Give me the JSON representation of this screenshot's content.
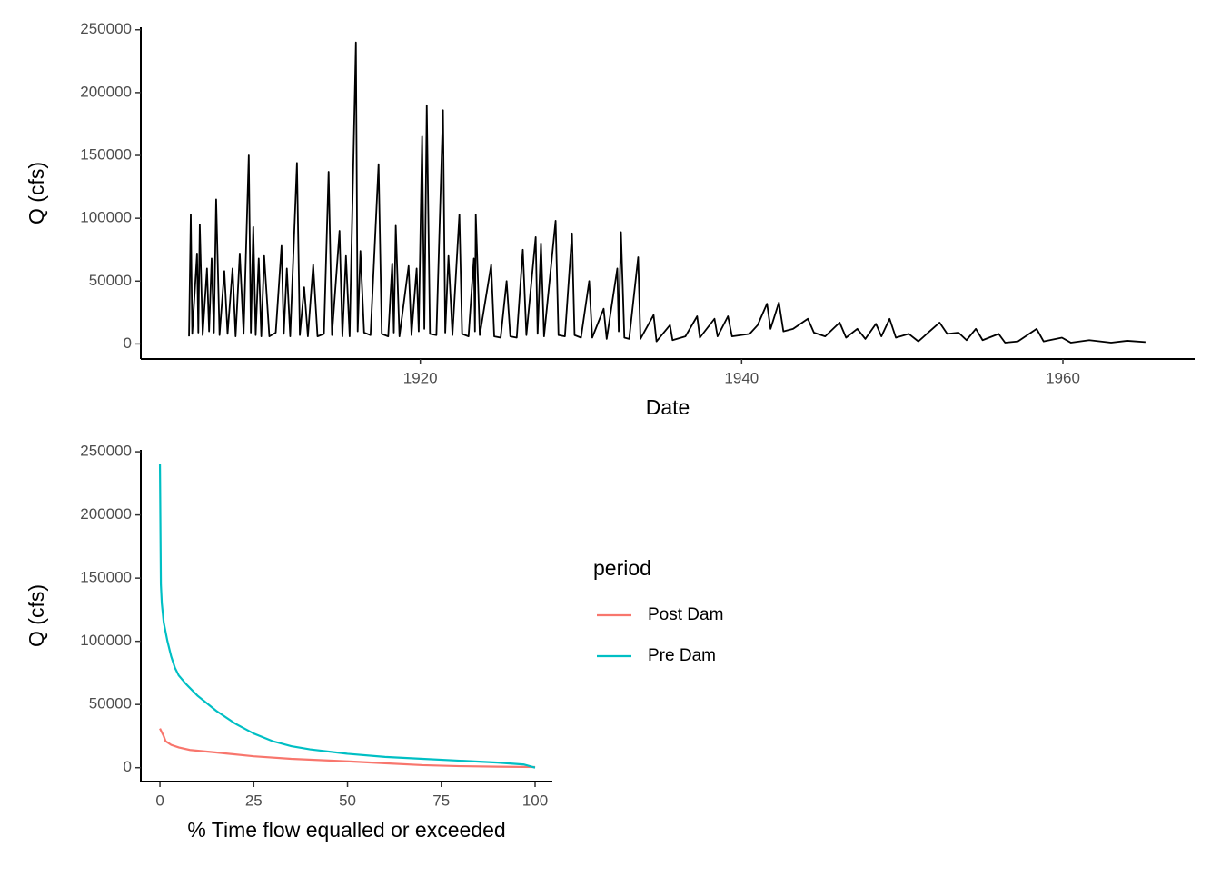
{
  "chart_data": [
    {
      "type": "line",
      "x_label": "Date",
      "y_label": "Q (cfs)",
      "color": "#000000",
      "xlim": [
        1902.6,
        1968.2
      ],
      "xticks": [
        1920,
        1940,
        1960
      ],
      "ylim": [
        -12000,
        252000
      ],
      "yticks": [
        0,
        50000,
        100000,
        150000,
        200000,
        250000
      ],
      "x": [
        1905.6,
        1905.71,
        1905.8,
        1906.1,
        1906.18,
        1906.27,
        1906.45,
        1906.72,
        1906.85,
        1907.01,
        1907.15,
        1907.29,
        1907.5,
        1907.8,
        1908.0,
        1908.31,
        1908.5,
        1908.76,
        1909.0,
        1909.32,
        1909.45,
        1909.6,
        1909.75,
        1909.94,
        1910.1,
        1910.28,
        1910.6,
        1911.0,
        1911.36,
        1911.5,
        1911.69,
        1911.9,
        1912.32,
        1912.5,
        1912.77,
        1913.0,
        1913.33,
        1913.6,
        1914.0,
        1914.29,
        1914.5,
        1914.97,
        1915.15,
        1915.37,
        1915.6,
        1915.99,
        1916.1,
        1916.27,
        1916.5,
        1916.9,
        1917.4,
        1917.6,
        1918.0,
        1918.25,
        1918.35,
        1918.47,
        1918.7,
        1919.27,
        1919.45,
        1919.77,
        1919.9,
        1920.11,
        1920.25,
        1920.4,
        1920.6,
        1921.0,
        1921.41,
        1921.55,
        1921.75,
        1922.0,
        1922.43,
        1922.6,
        1923.0,
        1923.33,
        1923.4,
        1923.45,
        1923.7,
        1924.41,
        1924.6,
        1925.0,
        1925.37,
        1925.6,
        1926.0,
        1926.38,
        1926.6,
        1927.18,
        1927.3,
        1927.51,
        1927.7,
        1928.42,
        1928.6,
        1929.0,
        1929.44,
        1929.6,
        1930.0,
        1930.51,
        1930.7,
        1931.41,
        1931.6,
        1932.26,
        1932.35,
        1932.49,
        1932.7,
        1933.0,
        1933.56,
        1933.7,
        1934.52,
        1934.7,
        1935.54,
        1935.7,
        1936.5,
        1937.23,
        1937.4,
        1938.31,
        1938.5,
        1939.15,
        1939.4,
        1940.5,
        1941.0,
        1941.58,
        1941.8,
        1942.32,
        1942.6,
        1943.2,
        1944.12,
        1944.5,
        1945.2,
        1946.1,
        1946.5,
        1947.2,
        1947.7,
        1948.36,
        1948.7,
        1949.21,
        1949.6,
        1950.4,
        1951.0,
        1951.7,
        1952.32,
        1952.8,
        1953.5,
        1954.0,
        1954.58,
        1955.0,
        1956.0,
        1956.4,
        1957.2,
        1958.36,
        1958.8,
        1959.94,
        1960.5,
        1961.64,
        1963.0,
        1964.0,
        1965.14
      ],
      "values": [
        6000,
        103000,
        8000,
        72000,
        9000,
        95000,
        7000,
        60000,
        10000,
        68000,
        9000,
        115000,
        7000,
        58000,
        8000,
        60000,
        6000,
        72000,
        8000,
        150000,
        9000,
        93000,
        7000,
        68000,
        6000,
        70000,
        6000,
        9000,
        78000,
        8000,
        60000,
        6000,
        144000,
        7000,
        45000,
        6000,
        63000,
        6000,
        8000,
        137000,
        7000,
        90000,
        6000,
        70000,
        6000,
        240000,
        10000,
        74000,
        9000,
        7000,
        143000,
        8000,
        6000,
        64000,
        9000,
        94000,
        6000,
        62000,
        7000,
        60000,
        10000,
        165000,
        12000,
        190000,
        8000,
        7000,
        186000,
        9000,
        70000,
        7000,
        103000,
        8000,
        6000,
        68000,
        10000,
        103000,
        7000,
        63000,
        6000,
        5000,
        50000,
        6000,
        5000,
        75000,
        7000,
        85000,
        8000,
        80000,
        6000,
        98000,
        7000,
        6000,
        88000,
        7000,
        5000,
        50000,
        5000,
        28000,
        4000,
        60000,
        10000,
        89000,
        5000,
        4000,
        69000,
        4000,
        23000,
        2000,
        15000,
        3000,
        6000,
        22000,
        5000,
        20000,
        6000,
        22000,
        6000,
        8000,
        15000,
        32000,
        12000,
        33000,
        10000,
        12000,
        20000,
        9000,
        6000,
        17000,
        5000,
        12000,
        4000,
        16000,
        6000,
        20000,
        5000,
        8000,
        2000,
        10000,
        17000,
        8000,
        9000,
        3000,
        12000,
        3000,
        8000,
        1000,
        2000,
        12000,
        2000,
        5000,
        1000,
        3000,
        1000,
        2500,
        1500
      ]
    },
    {
      "type": "line",
      "x_label": "% Time flow equalled or exceeded",
      "y_label": "Q (cfs)",
      "xlim": [
        -5.1,
        104.6
      ],
      "xticks": [
        0,
        25,
        50,
        75,
        100
      ],
      "ylim": [
        -11000,
        251500
      ],
      "yticks": [
        0,
        50000,
        100000,
        150000,
        200000,
        250000
      ],
      "legend_title": "period",
      "legend": "right",
      "series": [
        {
          "name": "Post Dam",
          "color": "#F8766D",
          "x": [
            0,
            1,
            1.5,
            3,
            5,
            8,
            15,
            25,
            35,
            50,
            60,
            70,
            80,
            90,
            100
          ],
          "values": [
            31000,
            25000,
            21000,
            18000,
            16000,
            14000,
            12000,
            9000,
            7000,
            5000,
            3500,
            2000,
            1200,
            800,
            500
          ]
        },
        {
          "name": "Pre Dam",
          "color": "#00BFC4",
          "x": [
            0,
            0.25,
            0.5,
            1,
            2,
            3,
            4,
            5,
            7,
            10,
            15,
            20,
            25,
            30,
            35,
            40,
            50,
            60,
            70,
            80,
            90,
            97,
            100
          ],
          "values": [
            240000,
            145000,
            130000,
            115000,
            100000,
            88000,
            79000,
            73000,
            66000,
            57000,
            45000,
            35000,
            27000,
            21000,
            17000,
            14500,
            11000,
            8500,
            7000,
            5500,
            4000,
            2500,
            0
          ]
        }
      ]
    }
  ]
}
